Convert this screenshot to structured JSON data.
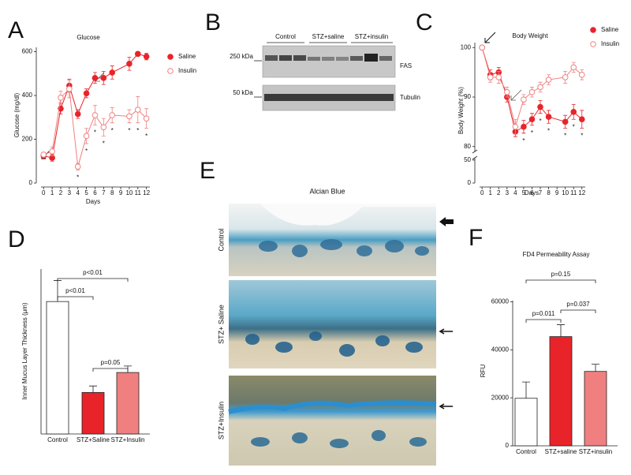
{
  "panel_labels": [
    "A",
    "B",
    "C",
    "D",
    "E",
    "F"
  ],
  "blot": {
    "lanes": [
      "Control",
      "STZ+saline",
      "STZ+insulin"
    ],
    "markers": [
      "250 kDa",
      "50 kDa"
    ],
    "proteins": [
      "FAS",
      "Tubulin"
    ]
  },
  "histology": {
    "title": "Alcian Blue",
    "rows": [
      "Control",
      "STZ+ Saline",
      "STZ+Insulin"
    ]
  },
  "chart_data": [
    {
      "type": "line",
      "title": "Glucose",
      "x_label": "Days",
      "y_label": "Glucose (mg/dl)",
      "x": [
        0,
        1,
        2,
        3,
        4,
        5,
        6,
        7,
        8,
        10,
        11,
        12
      ],
      "xlim": [
        -0.3,
        12.4
      ],
      "xticks": [
        0,
        1,
        2,
        3,
        4,
        5,
        6,
        7,
        8,
        9,
        10,
        11,
        12
      ],
      "ylim": [
        0,
        620
      ],
      "yticks": [
        0,
        200,
        400,
        600
      ],
      "series": [
        {
          "name": "Saline",
          "color": "#e8242a",
          "marker": "filled",
          "values": [
            125,
            115,
            340,
            445,
            315,
            410,
            480,
            480,
            505,
            545,
            590,
            578
          ],
          "errors": [
            10,
            15,
            25,
            30,
            20,
            20,
            25,
            30,
            30,
            30,
            10,
            15
          ]
        },
        {
          "name": "Insulin",
          "color": "#f08080",
          "marker": "open",
          "values": [
            130,
            145,
            390,
            430,
            75,
            215,
            310,
            255,
            310,
            305,
            335,
            295
          ],
          "errors": [
            10,
            20,
            30,
            40,
            15,
            35,
            45,
            40,
            35,
            30,
            60,
            45
          ]
        }
      ],
      "significance": {
        "label": "*",
        "x": [
          4,
          5,
          6,
          7,
          8,
          10,
          11,
          12
        ]
      }
    },
    {
      "type": "line",
      "title": "Body Weight",
      "x_label": "Days",
      "y_label": "Body Weight (%)",
      "x": [
        0,
        1,
        2,
        3,
        4,
        5,
        6,
        7,
        8,
        10,
        11,
        12
      ],
      "xlim": [
        -0.3,
        12.4
      ],
      "xticks": [
        0,
        1,
        2,
        3,
        4,
        5,
        6,
        7,
        8,
        9,
        10,
        11,
        12
      ],
      "ylim": [
        0,
        101
      ],
      "axis_break": [
        55,
        79
      ],
      "yticks": [
        0,
        50,
        80,
        90,
        100
      ],
      "series": [
        {
          "name": "Saline",
          "color": "#e8242a",
          "marker": "filled",
          "values": [
            100,
            94.5,
            95,
            90,
            83,
            84,
            85.5,
            88,
            86,
            85,
            87,
            85.5
          ],
          "errors": [
            0.3,
            1,
            1,
            1,
            1,
            1.3,
            1.2,
            1.3,
            1.3,
            1.3,
            1.5,
            1.8
          ]
        },
        {
          "name": "Insulin",
          "color": "#f08080",
          "marker": "open",
          "values": [
            100,
            94,
            94,
            91,
            84,
            89.5,
            91,
            92,
            93.5,
            94,
            96,
            94.5
          ],
          "errors": [
            0.3,
            1,
            1.2,
            1,
            1.5,
            1,
            1,
            1,
            1,
            1.2,
            1,
            1
          ]
        }
      ],
      "significance": {
        "label": "*",
        "x": [
          5,
          6,
          7,
          8,
          10,
          11,
          12
        ]
      }
    },
    {
      "type": "bar",
      "y_label": "Inner Mucus Layer Thickness (μm)",
      "categories": [
        "Control",
        "STZ+Saline",
        "STZ+Insulin"
      ],
      "values": [
        26.5,
        8.3,
        12.3
      ],
      "errors": [
        4.2,
        1.3,
        1.3
      ],
      "colors": [
        "#ffffff",
        "#e8242a",
        "#f08080"
      ],
      "ylim": [
        0,
        33
      ],
      "comparisons": [
        "p<0.01",
        "p<0.01",
        "p=0.05"
      ]
    },
    {
      "type": "bar",
      "title": "FD4 Permeability Assay",
      "y_label": "RFU",
      "categories": [
        "Control",
        "STZ+saline",
        "STZ+insulin"
      ],
      "values": [
        19800,
        45500,
        31000
      ],
      "errors": [
        6800,
        5000,
        3000
      ],
      "colors": [
        "#ffffff",
        "#e8242a",
        "#f08080"
      ],
      "ylim": [
        0,
        60500
      ],
      "yticks": [
        0,
        20000,
        40000,
        60000
      ],
      "comparisons": [
        "p=0.15",
        "p=0.011",
        "p=0.037"
      ]
    }
  ]
}
